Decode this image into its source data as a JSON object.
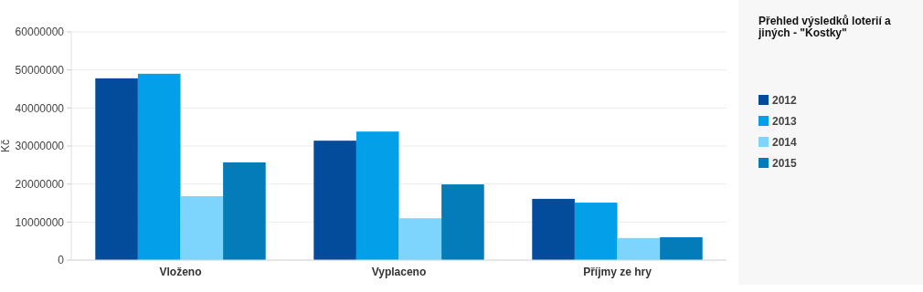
{
  "chart_data": {
    "type": "bar",
    "title": "Přehled výsledků loterií a jiných - \"Kostky\"",
    "ylabel": "Kč",
    "categories": [
      "Vloženo",
      "Vyplaceno",
      "Příjmy ze hry"
    ],
    "series": [
      {
        "name": "2012",
        "color": "#034c9b",
        "values": [
          47800000,
          31400000,
          16100000
        ]
      },
      {
        "name": "2013",
        "color": "#039fe9",
        "values": [
          49000000,
          33800000,
          15100000
        ]
      },
      {
        "name": "2014",
        "color": "#7dd4fd",
        "values": [
          16800000,
          11000000,
          5800000
        ]
      },
      {
        "name": "2015",
        "color": "#037cb9",
        "values": [
          25700000,
          19900000,
          6000000
        ]
      }
    ],
    "ylim": [
      0,
      60000000
    ],
    "yticks": [
      0,
      10000000,
      20000000,
      30000000,
      40000000,
      50000000,
      60000000
    ],
    "grid": "y",
    "legend": "right"
  }
}
